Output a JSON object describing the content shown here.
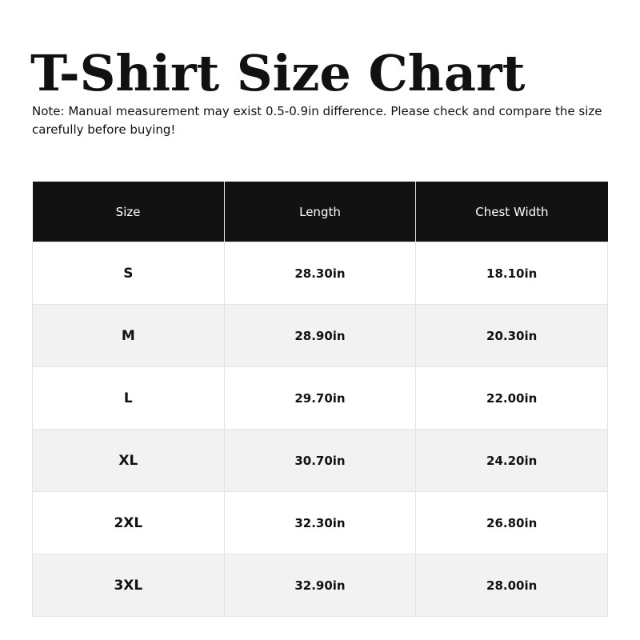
{
  "title": "T-Shirt Size Chart",
  "note": "Note: Manual measurement may exist 0.5-0.9in difference. Please check and compare the size carefully before buying!",
  "table": {
    "headers": [
      "Size",
      "Length",
      "Chest Width"
    ],
    "rows": [
      [
        "S",
        "28.30in",
        "18.10in"
      ],
      [
        "M",
        "28.90in",
        "20.30in"
      ],
      [
        "L",
        "29.70in",
        "22.00in"
      ],
      [
        "XL",
        "30.70in",
        "24.20in"
      ],
      [
        "2XL",
        "32.30in",
        "26.80in"
      ],
      [
        "3XL",
        "32.90in",
        "28.00in"
      ]
    ]
  },
  "colors": {
    "header_bg": "#121212",
    "alt_row_bg": "#f2f2f2"
  }
}
